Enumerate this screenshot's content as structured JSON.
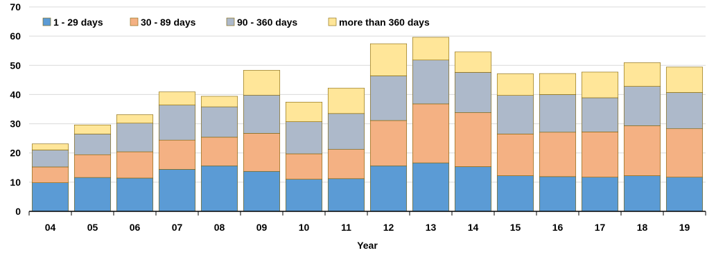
{
  "chart_data": {
    "type": "bar",
    "stacked": true,
    "categories": [
      "04",
      "05",
      "06",
      "07",
      "08",
      "09",
      "10",
      "11",
      "12",
      "13",
      "14",
      "15",
      "16",
      "17",
      "18",
      "19"
    ],
    "series": [
      {
        "name": "1 - 29 days",
        "color": "#5B9BD5",
        "values": [
          9.8,
          11.6,
          11.4,
          14.4,
          15.6,
          13.7,
          11.0,
          11.2,
          15.6,
          16.6,
          15.3,
          12.2,
          11.9,
          11.7,
          12.2,
          11.7
        ]
      },
      {
        "name": "30 - 89 days",
        "color": "#F4B183",
        "values": [
          5.4,
          7.8,
          9.0,
          10.0,
          9.8,
          13.0,
          8.7,
          10.0,
          15.5,
          20.2,
          18.5,
          14.3,
          15.2,
          15.5,
          17.1,
          16.6
        ]
      },
      {
        "name": "90 - 360 days",
        "color": "#ADB9CA",
        "values": [
          5.8,
          7.1,
          9.8,
          12.0,
          10.4,
          13.1,
          11.0,
          12.3,
          15.3,
          15.0,
          13.8,
          13.2,
          12.9,
          11.7,
          13.5,
          12.4
        ]
      },
      {
        "name": "more than 360 days",
        "color": "#FFE699",
        "values": [
          2.1,
          3.1,
          2.9,
          4.5,
          3.6,
          8.5,
          6.7,
          8.7,
          11.0,
          7.8,
          7.0,
          7.4,
          7.2,
          8.8,
          8.1,
          8.7
        ]
      }
    ],
    "xlabel": "Year",
    "ylabel": "",
    "ylim": [
      0,
      70
    ],
    "yticks": [
      0,
      10,
      20,
      30,
      40,
      50,
      60,
      70
    ],
    "grid": true,
    "legend_position": "top-left"
  }
}
